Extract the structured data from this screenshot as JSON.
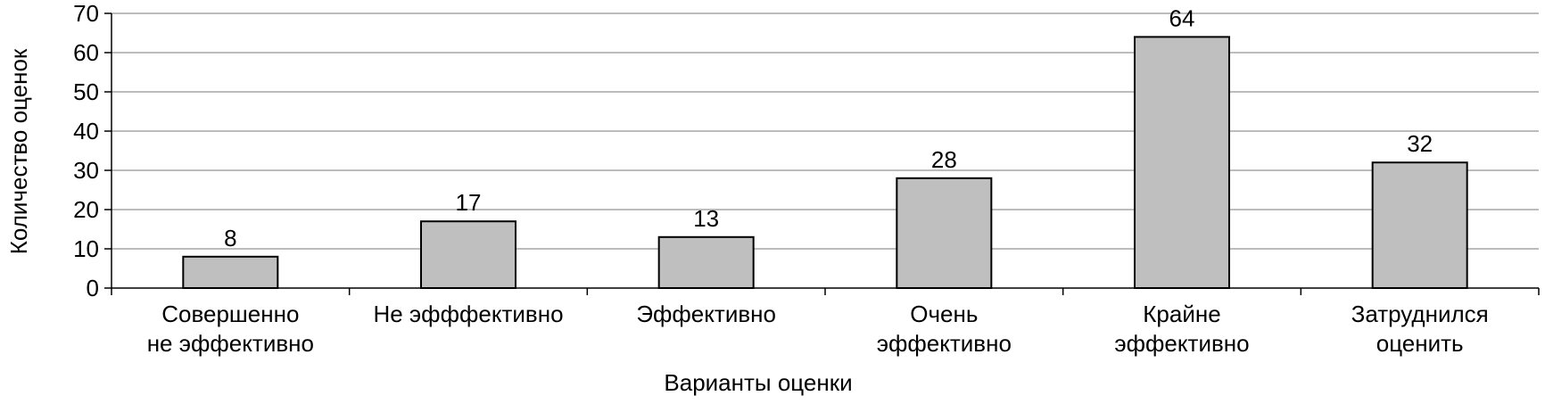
{
  "chart_data": {
    "type": "bar",
    "categories": [
      [
        "Совершенно",
        "не эффективно"
      ],
      [
        "Не эфффективно"
      ],
      [
        "Эффективно"
      ],
      [
        "Очень",
        "эффективно"
      ],
      [
        "Крайне",
        "эффективно"
      ],
      [
        "Затруднился",
        "оценить"
      ]
    ],
    "values": [
      8,
      17,
      13,
      28,
      64,
      32
    ],
    "data_labels": [
      "8",
      "17",
      "13",
      "28",
      "64",
      "32"
    ],
    "xlabel": "Варианты оценки",
    "ylabel": "Количество оценок",
    "ylim": [
      0,
      70
    ],
    "yticks": [
      0,
      10,
      20,
      30,
      40,
      50,
      60,
      70
    ],
    "ytick_labels": [
      "0",
      "10",
      "20",
      "30",
      "40",
      "50",
      "60",
      "70"
    ],
    "grid": true,
    "legend": "none",
    "colors": {
      "bar_fill": "#bfbfbf",
      "bar_stroke": "#000000",
      "grid": "#a6a6a6",
      "axis": "#000000"
    }
  }
}
